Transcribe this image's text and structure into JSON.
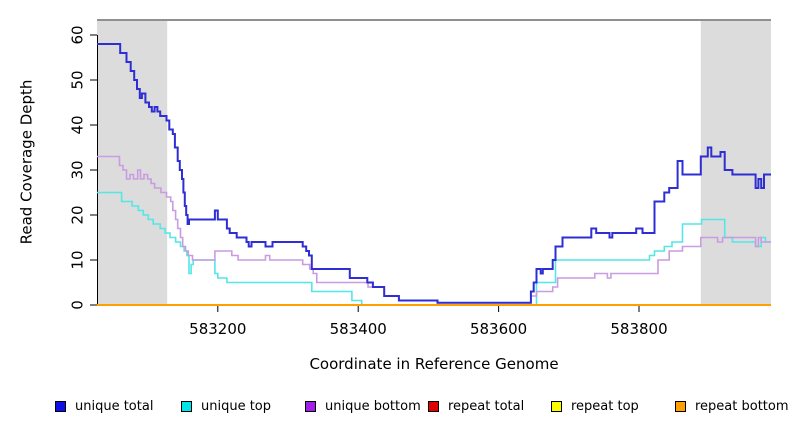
{
  "chart_data": {
    "type": "line",
    "step": true,
    "title": "",
    "xlabel": "Coordinate in Reference Genome",
    "ylabel": "Read Coverage Depth",
    "xlim": [
      583028,
      583988
    ],
    "ylim": [
      0,
      60
    ],
    "x_ticks": [
      583200,
      583400,
      583600,
      583800
    ],
    "y_ticks": [
      0,
      10,
      20,
      30,
      40,
      50,
      60
    ],
    "grid": false,
    "legend_position": "bottom",
    "shade_color": "#dcdcdc",
    "top_line_color": "#909090",
    "axis_color": "#000000",
    "shaded_regions": [
      [
        583028,
        583128
      ],
      [
        583888,
        583988
      ]
    ],
    "series": [
      {
        "name": "unique total",
        "color": "#2e2ed4",
        "width": 2,
        "points": [
          [
            583028,
            58
          ],
          [
            583061,
            56
          ],
          [
            583070,
            54
          ],
          [
            583076,
            52
          ],
          [
            583081,
            50
          ],
          [
            583085,
            48
          ],
          [
            583089,
            46
          ],
          [
            583092,
            47
          ],
          [
            583097,
            45
          ],
          [
            583102,
            44
          ],
          [
            583106,
            43
          ],
          [
            583110,
            44
          ],
          [
            583114,
            43
          ],
          [
            583118,
            42
          ],
          [
            583127,
            41
          ],
          [
            583131,
            39
          ],
          [
            583136,
            38
          ],
          [
            583139,
            35
          ],
          [
            583143,
            32
          ],
          [
            583146,
            30
          ],
          [
            583149,
            28
          ],
          [
            583151,
            25
          ],
          [
            583153,
            22
          ],
          [
            583155,
            20
          ],
          [
            583157,
            18
          ],
          [
            583159,
            19
          ],
          [
            583196,
            21
          ],
          [
            583200,
            19
          ],
          [
            583213,
            17
          ],
          [
            583217,
            16
          ],
          [
            583227,
            15
          ],
          [
            583241,
            14
          ],
          [
            583244,
            13
          ],
          [
            583248,
            14
          ],
          [
            583268,
            13
          ],
          [
            583278,
            14
          ],
          [
            583321,
            13
          ],
          [
            583326,
            12
          ],
          [
            583330,
            11
          ],
          [
            583334,
            8
          ],
          [
            583388,
            6
          ],
          [
            583413,
            5
          ],
          [
            583421,
            4
          ],
          [
            583437,
            2
          ],
          [
            583458,
            1
          ],
          [
            583513,
            0.5
          ],
          [
            583646,
            3
          ],
          [
            583650,
            5
          ],
          [
            583654,
            8
          ],
          [
            583660,
            7
          ],
          [
            583663,
            8
          ],
          [
            583677,
            10
          ],
          [
            583681,
            13
          ],
          [
            583691,
            15
          ],
          [
            583732,
            17
          ],
          [
            583739,
            16
          ],
          [
            583758,
            15
          ],
          [
            583762,
            16
          ],
          [
            583796,
            17
          ],
          [
            583805,
            16
          ],
          [
            583822,
            23
          ],
          [
            583836,
            25
          ],
          [
            583843,
            26
          ],
          [
            583855,
            32
          ],
          [
            583862,
            29
          ],
          [
            583888,
            33
          ],
          [
            583898,
            35
          ],
          [
            583903,
            33
          ],
          [
            583916,
            34
          ],
          [
            583922,
            30
          ],
          [
            583933,
            29
          ],
          [
            583966,
            26
          ],
          [
            583970,
            28
          ],
          [
            583974,
            26
          ],
          [
            583978,
            29
          ],
          [
            583988,
            29
          ]
        ]
      },
      {
        "name": "unique top",
        "color": "#55e6e6",
        "width": 1.6,
        "points": [
          [
            583028,
            25
          ],
          [
            583063,
            23
          ],
          [
            583078,
            22
          ],
          [
            583087,
            21
          ],
          [
            583094,
            20
          ],
          [
            583101,
            19
          ],
          [
            583108,
            18
          ],
          [
            583118,
            17
          ],
          [
            583125,
            16
          ],
          [
            583132,
            15
          ],
          [
            583140,
            14
          ],
          [
            583147,
            13
          ],
          [
            583152,
            12
          ],
          [
            583156,
            11
          ],
          [
            583159,
            7
          ],
          [
            583162,
            9
          ],
          [
            583165,
            10
          ],
          [
            583196,
            7
          ],
          [
            583200,
            6
          ],
          [
            583213,
            5
          ],
          [
            583334,
            3
          ],
          [
            583391,
            1
          ],
          [
            583405,
            0
          ],
          [
            583654,
            5
          ],
          [
            583681,
            10
          ],
          [
            583815,
            11
          ],
          [
            583822,
            12
          ],
          [
            583836,
            13
          ],
          [
            583847,
            14
          ],
          [
            583862,
            18
          ],
          [
            583889,
            19
          ],
          [
            583922,
            15
          ],
          [
            583933,
            14
          ],
          [
            583966,
            13
          ],
          [
            583974,
            15
          ],
          [
            583980,
            14
          ],
          [
            583988,
            14
          ]
        ]
      },
      {
        "name": "unique bottom",
        "color": "#c99ce2",
        "width": 1.6,
        "points": [
          [
            583028,
            33
          ],
          [
            583060,
            31
          ],
          [
            583065,
            30
          ],
          [
            583070,
            28
          ],
          [
            583075,
            29
          ],
          [
            583080,
            28
          ],
          [
            583086,
            30
          ],
          [
            583090,
            28
          ],
          [
            583095,
            29
          ],
          [
            583100,
            28
          ],
          [
            583105,
            27
          ],
          [
            583110,
            26
          ],
          [
            583119,
            25
          ],
          [
            583127,
            24
          ],
          [
            583133,
            23
          ],
          [
            583136,
            21
          ],
          [
            583140,
            19
          ],
          [
            583143,
            17
          ],
          [
            583147,
            15
          ],
          [
            583150,
            13
          ],
          [
            583154,
            12
          ],
          [
            583158,
            11
          ],
          [
            583164,
            10
          ],
          [
            583196,
            12
          ],
          [
            583220,
            11
          ],
          [
            583229,
            10
          ],
          [
            583268,
            11
          ],
          [
            583274,
            10
          ],
          [
            583321,
            9
          ],
          [
            583331,
            8
          ],
          [
            583336,
            7
          ],
          [
            583341,
            5
          ],
          [
            583414,
            4
          ],
          [
            583437,
            2
          ],
          [
            583458,
            1
          ],
          [
            583513,
            0.5
          ],
          [
            583646,
            2
          ],
          [
            583654,
            3
          ],
          [
            583677,
            4
          ],
          [
            583684,
            6
          ],
          [
            583737,
            7
          ],
          [
            583755,
            6
          ],
          [
            583760,
            7
          ],
          [
            583827,
            10
          ],
          [
            583843,
            12
          ],
          [
            583862,
            13
          ],
          [
            583888,
            15
          ],
          [
            583912,
            14
          ],
          [
            583919,
            15
          ],
          [
            583966,
            13
          ],
          [
            583970,
            15
          ],
          [
            583974,
            14
          ],
          [
            583988,
            14
          ]
        ]
      },
      {
        "name": "repeat total",
        "color": "#e00000",
        "width": 1.6,
        "points": [
          [
            583028,
            0
          ],
          [
            583988,
            0
          ]
        ]
      },
      {
        "name": "repeat top",
        "color": "#f8f800",
        "width": 1.6,
        "points": [
          [
            583028,
            0
          ],
          [
            583988,
            0
          ]
        ]
      },
      {
        "name": "repeat bottom",
        "color": "#ffa000",
        "width": 2,
        "points": [
          [
            583028,
            0
          ],
          [
            583988,
            0
          ]
        ]
      }
    ],
    "legend": [
      {
        "label": "unique total",
        "color": "#0f0fe8"
      },
      {
        "label": "unique top",
        "color": "#00e6e6"
      },
      {
        "label": "unique bottom",
        "color": "#a21fe8"
      },
      {
        "label": "repeat total",
        "color": "#e00000"
      },
      {
        "label": "repeat top",
        "color": "#fcfc00"
      },
      {
        "label": "repeat bottom",
        "color": "#ffa000"
      }
    ]
  }
}
